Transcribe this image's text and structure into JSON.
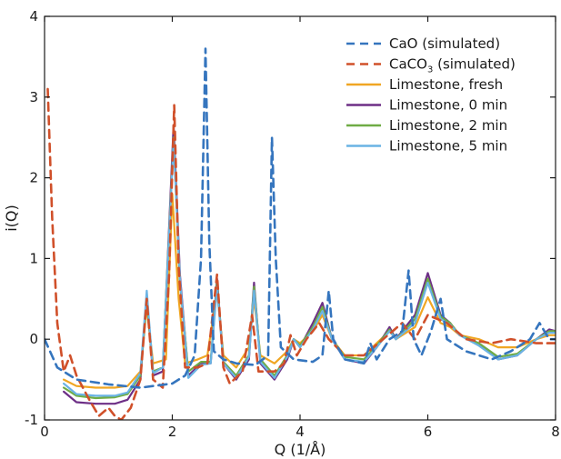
{
  "chart_data": {
    "type": "line",
    "title": "",
    "xlabel": "Q (1/Å)",
    "ylabel": "i(Q)",
    "xlim": [
      0,
      8
    ],
    "ylim": [
      -1,
      4
    ],
    "xticks": [
      0,
      2,
      4,
      6,
      8
    ],
    "yticks": [
      -1,
      0,
      1,
      2,
      3,
      4
    ],
    "grid": false,
    "legend_position": "top-right",
    "series": [
      {
        "name": "CaO (simulated)",
        "label_main": "CaO",
        "label_sub": "",
        "label_rest": " (simulated)",
        "color": "#3575be",
        "dash": "dashed",
        "points": [
          [
            0,
            0
          ],
          [
            0.2,
            -0.35
          ],
          [
            0.5,
            -0.5
          ],
          [
            1.0,
            -0.56
          ],
          [
            1.5,
            -0.6
          ],
          [
            2.0,
            -0.55
          ],
          [
            2.2,
            -0.45
          ],
          [
            2.35,
            -0.2
          ],
          [
            2.45,
            1.0
          ],
          [
            2.52,
            3.6
          ],
          [
            2.58,
            1.2
          ],
          [
            2.65,
            -0.15
          ],
          [
            2.8,
            -0.25
          ],
          [
            3.0,
            -0.3
          ],
          [
            3.3,
            -0.32
          ],
          [
            3.5,
            -0.2
          ],
          [
            3.56,
            2.5
          ],
          [
            3.62,
            1.0
          ],
          [
            3.7,
            -0.1
          ],
          [
            3.9,
            -0.25
          ],
          [
            4.2,
            -0.28
          ],
          [
            4.35,
            -0.2
          ],
          [
            4.45,
            0.6
          ],
          [
            4.52,
            0.0
          ],
          [
            4.7,
            -0.25
          ],
          [
            5.0,
            -0.3
          ],
          [
            5.1,
            -0.05
          ],
          [
            5.2,
            -0.25
          ],
          [
            5.4,
            0.0
          ],
          [
            5.6,
            0.1
          ],
          [
            5.7,
            0.85
          ],
          [
            5.78,
            0.0
          ],
          [
            5.9,
            -0.2
          ],
          [
            6.05,
            0.1
          ],
          [
            6.2,
            0.5
          ],
          [
            6.3,
            0.0
          ],
          [
            6.6,
            -0.15
          ],
          [
            7.0,
            -0.25
          ],
          [
            7.3,
            -0.15
          ],
          [
            7.6,
            0.0
          ],
          [
            7.75,
            0.2
          ],
          [
            7.9,
            0.0
          ],
          [
            8.0,
            0.0
          ]
        ]
      },
      {
        "name": "CaCO3 (simulated)",
        "label_main": "CaCO",
        "label_sub": "3",
        "label_rest": " (simulated)",
        "color": "#d0502a",
        "dash": "dashed",
        "points": [
          [
            0.05,
            3.1
          ],
          [
            0.12,
            1.5
          ],
          [
            0.2,
            0.2
          ],
          [
            0.3,
            -0.4
          ],
          [
            0.4,
            -0.2
          ],
          [
            0.5,
            -0.45
          ],
          [
            0.7,
            -0.75
          ],
          [
            0.85,
            -0.95
          ],
          [
            1.0,
            -0.85
          ],
          [
            1.1,
            -0.95
          ],
          [
            1.2,
            -1.0
          ],
          [
            1.35,
            -0.85
          ],
          [
            1.5,
            -0.5
          ],
          [
            1.6,
            0.5
          ],
          [
            1.7,
            -0.5
          ],
          [
            1.85,
            -0.6
          ],
          [
            1.95,
            0.8
          ],
          [
            2.03,
            2.9
          ],
          [
            2.1,
            0.9
          ],
          [
            2.2,
            -0.35
          ],
          [
            2.4,
            -0.35
          ],
          [
            2.55,
            -0.3
          ],
          [
            2.7,
            0.8
          ],
          [
            2.8,
            -0.35
          ],
          [
            2.9,
            -0.55
          ],
          [
            3.1,
            -0.4
          ],
          [
            3.25,
            0.3
          ],
          [
            3.35,
            -0.4
          ],
          [
            3.6,
            -0.4
          ],
          [
            3.75,
            -0.3
          ],
          [
            3.85,
            0.05
          ],
          [
            3.95,
            -0.2
          ],
          [
            4.1,
            0.0
          ],
          [
            4.3,
            0.2
          ],
          [
            4.45,
            0.0
          ],
          [
            4.7,
            -0.2
          ],
          [
            5.0,
            -0.2
          ],
          [
            5.3,
            0.0
          ],
          [
            5.6,
            0.2
          ],
          [
            5.8,
            0.0
          ],
          [
            6.0,
            0.3
          ],
          [
            6.3,
            0.2
          ],
          [
            6.6,
            0.0
          ],
          [
            7.0,
            -0.05
          ],
          [
            7.3,
            0.0
          ],
          [
            7.7,
            -0.05
          ],
          [
            8.0,
            -0.05
          ]
        ]
      },
      {
        "name": "Limestone, fresh",
        "label_main": "Limestone, fresh",
        "label_sub": "",
        "label_rest": "",
        "color": "#f0a623",
        "dash": "solid",
        "points": [
          [
            0.3,
            -0.5
          ],
          [
            0.5,
            -0.58
          ],
          [
            0.8,
            -0.6
          ],
          [
            1.1,
            -0.6
          ],
          [
            1.3,
            -0.58
          ],
          [
            1.5,
            -0.4
          ],
          [
            1.6,
            0.4
          ],
          [
            1.7,
            -0.3
          ],
          [
            1.9,
            -0.25
          ],
          [
            2.0,
            1.8
          ],
          [
            2.1,
            0.5
          ],
          [
            2.2,
            -0.3
          ],
          [
            2.4,
            -0.25
          ],
          [
            2.55,
            -0.2
          ],
          [
            2.7,
            0.6
          ],
          [
            2.8,
            -0.2
          ],
          [
            3.0,
            -0.35
          ],
          [
            3.2,
            -0.1
          ],
          [
            3.28,
            0.5
          ],
          [
            3.38,
            -0.2
          ],
          [
            3.6,
            -0.3
          ],
          [
            3.8,
            -0.15
          ],
          [
            3.9,
            0.0
          ],
          [
            4.0,
            -0.05
          ],
          [
            4.2,
            0.1
          ],
          [
            4.35,
            0.3
          ],
          [
            4.5,
            0.0
          ],
          [
            4.7,
            -0.2
          ],
          [
            5.0,
            -0.2
          ],
          [
            5.2,
            -0.05
          ],
          [
            5.4,
            0.1
          ],
          [
            5.5,
            0.0
          ],
          [
            5.8,
            0.15
          ],
          [
            6.0,
            0.52
          ],
          [
            6.2,
            0.2
          ],
          [
            6.35,
            0.15
          ],
          [
            6.5,
            0.05
          ],
          [
            6.8,
            0.0
          ],
          [
            7.1,
            -0.1
          ],
          [
            7.4,
            -0.1
          ],
          [
            7.7,
            0.0
          ],
          [
            7.9,
            0.05
          ],
          [
            8.0,
            0.05
          ]
        ]
      },
      {
        "name": "Limestone, 0 min",
        "label_main": "Limestone, 0 min",
        "label_sub": "",
        "label_rest": "",
        "color": "#6d2f86",
        "dash": "solid",
        "points": [
          [
            0.3,
            -0.65
          ],
          [
            0.5,
            -0.78
          ],
          [
            0.8,
            -0.8
          ],
          [
            1.1,
            -0.8
          ],
          [
            1.3,
            -0.75
          ],
          [
            1.5,
            -0.5
          ],
          [
            1.6,
            0.55
          ],
          [
            1.7,
            -0.45
          ],
          [
            1.85,
            -0.4
          ],
          [
            2.02,
            2.65
          ],
          [
            2.12,
            0.8
          ],
          [
            2.25,
            -0.45
          ],
          [
            2.45,
            -0.3
          ],
          [
            2.6,
            -0.3
          ],
          [
            2.7,
            0.75
          ],
          [
            2.8,
            -0.3
          ],
          [
            3.0,
            -0.5
          ],
          [
            3.2,
            -0.25
          ],
          [
            3.28,
            0.7
          ],
          [
            3.38,
            -0.3
          ],
          [
            3.6,
            -0.5
          ],
          [
            3.8,
            -0.25
          ],
          [
            3.9,
            0.0
          ],
          [
            4.0,
            -0.1
          ],
          [
            4.2,
            0.2
          ],
          [
            4.35,
            0.45
          ],
          [
            4.5,
            0.0
          ],
          [
            4.7,
            -0.25
          ],
          [
            5.0,
            -0.3
          ],
          [
            5.2,
            -0.1
          ],
          [
            5.4,
            0.15
          ],
          [
            5.5,
            0.0
          ],
          [
            5.8,
            0.3
          ],
          [
            6.0,
            0.82
          ],
          [
            6.2,
            0.3
          ],
          [
            6.35,
            0.2
          ],
          [
            6.5,
            0.05
          ],
          [
            6.8,
            -0.05
          ],
          [
            7.1,
            -0.25
          ],
          [
            7.4,
            -0.2
          ],
          [
            7.7,
            0.0
          ],
          [
            7.9,
            0.12
          ],
          [
            8.0,
            0.1
          ]
        ]
      },
      {
        "name": "Limestone, 2 min",
        "label_main": "Limestone, 2 min",
        "label_sub": "",
        "label_rest": "",
        "color": "#6fac45",
        "dash": "solid",
        "points": [
          [
            0.3,
            -0.6
          ],
          [
            0.5,
            -0.7
          ],
          [
            0.8,
            -0.73
          ],
          [
            1.1,
            -0.72
          ],
          [
            1.3,
            -0.68
          ],
          [
            1.5,
            -0.45
          ],
          [
            1.6,
            0.5
          ],
          [
            1.7,
            -0.4
          ],
          [
            1.85,
            -0.35
          ],
          [
            2.02,
            2.5
          ],
          [
            2.12,
            0.7
          ],
          [
            2.25,
            -0.4
          ],
          [
            2.45,
            -0.28
          ],
          [
            2.6,
            -0.28
          ],
          [
            2.7,
            0.7
          ],
          [
            2.8,
            -0.28
          ],
          [
            3.0,
            -0.45
          ],
          [
            3.2,
            -0.2
          ],
          [
            3.28,
            0.65
          ],
          [
            3.38,
            -0.25
          ],
          [
            3.6,
            -0.45
          ],
          [
            3.8,
            -0.2
          ],
          [
            3.9,
            0.0
          ],
          [
            4.0,
            -0.08
          ],
          [
            4.2,
            0.15
          ],
          [
            4.35,
            0.4
          ],
          [
            4.5,
            0.0
          ],
          [
            4.7,
            -0.22
          ],
          [
            5.0,
            -0.25
          ],
          [
            5.2,
            -0.08
          ],
          [
            5.4,
            0.12
          ],
          [
            5.5,
            0.0
          ],
          [
            5.8,
            0.25
          ],
          [
            6.0,
            0.75
          ],
          [
            6.2,
            0.28
          ],
          [
            6.35,
            0.2
          ],
          [
            6.5,
            0.05
          ],
          [
            6.8,
            -0.05
          ],
          [
            7.1,
            -0.22
          ],
          [
            7.4,
            -0.18
          ],
          [
            7.7,
            0.0
          ],
          [
            7.9,
            0.1
          ],
          [
            8.0,
            0.1
          ]
        ]
      },
      {
        "name": "Limestone, 5 min",
        "label_main": "Limestone, 5 min",
        "label_sub": "",
        "label_rest": "",
        "color": "#6ab3e4",
        "dash": "solid",
        "points": [
          [
            0.3,
            -0.55
          ],
          [
            0.5,
            -0.68
          ],
          [
            0.8,
            -0.7
          ],
          [
            1.1,
            -0.7
          ],
          [
            1.3,
            -0.66
          ],
          [
            1.5,
            -0.42
          ],
          [
            1.6,
            0.6
          ],
          [
            1.7,
            -0.42
          ],
          [
            1.85,
            -0.35
          ],
          [
            2.02,
            2.45
          ],
          [
            2.12,
            0.75
          ],
          [
            2.25,
            -0.48
          ],
          [
            2.45,
            -0.32
          ],
          [
            2.6,
            -0.3
          ],
          [
            2.7,
            0.65
          ],
          [
            2.8,
            -0.3
          ],
          [
            3.0,
            -0.48
          ],
          [
            3.2,
            -0.22
          ],
          [
            3.28,
            0.6
          ],
          [
            3.38,
            -0.28
          ],
          [
            3.6,
            -0.48
          ],
          [
            3.8,
            -0.22
          ],
          [
            3.9,
            0.0
          ],
          [
            4.0,
            -0.1
          ],
          [
            4.2,
            0.12
          ],
          [
            4.35,
            0.35
          ],
          [
            4.5,
            0.0
          ],
          [
            4.7,
            -0.25
          ],
          [
            5.0,
            -0.28
          ],
          [
            5.2,
            -0.1
          ],
          [
            5.4,
            0.1
          ],
          [
            5.5,
            0.0
          ],
          [
            5.8,
            0.2
          ],
          [
            6.0,
            0.7
          ],
          [
            6.2,
            0.25
          ],
          [
            6.35,
            0.18
          ],
          [
            6.5,
            0.05
          ],
          [
            6.8,
            -0.08
          ],
          [
            7.1,
            -0.25
          ],
          [
            7.4,
            -0.2
          ],
          [
            7.7,
            0.0
          ],
          [
            7.9,
            0.08
          ],
          [
            8.0,
            0.08
          ]
        ]
      }
    ]
  }
}
